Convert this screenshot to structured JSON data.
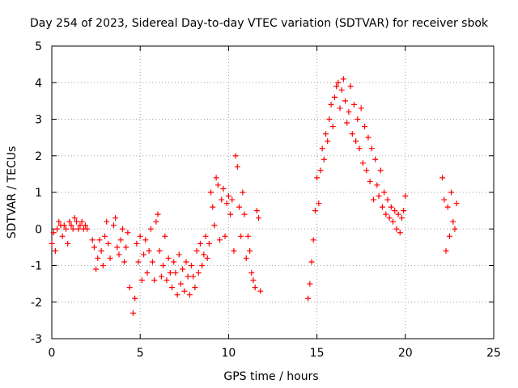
{
  "chart_data": {
    "type": "scatter",
    "title": "Day 254 of 2023, Sidereal Day-to-day VTEC variation (SDTVAR) for receiver sbok",
    "xlabel": "GPS time / hours",
    "ylabel": "SDTVAR / TECUs",
    "xlim": [
      0,
      25
    ],
    "ylim": [
      -3,
      5
    ],
    "x_ticks": [
      0,
      5,
      10,
      15,
      20,
      25
    ],
    "y_ticks": [
      -3,
      -2,
      -1,
      0,
      1,
      2,
      3,
      4,
      5
    ],
    "grid": true,
    "marker": "+",
    "color": "#ff0000",
    "series": [
      {
        "name": "SDTVAR",
        "x": [
          0.0,
          0.1,
          0.2,
          0.3,
          0.4,
          0.5,
          0.6,
          0.7,
          0.8,
          0.9,
          1.0,
          1.1,
          1.2,
          1.3,
          1.4,
          1.5,
          1.6,
          1.7,
          1.8,
          1.9,
          2.0,
          2.3,
          2.4,
          2.5,
          2.6,
          2.7,
          2.8,
          2.9,
          3.0,
          3.1,
          3.2,
          3.3,
          3.5,
          3.6,
          3.7,
          3.8,
          3.9,
          4.0,
          4.1,
          4.2,
          4.3,
          4.4,
          4.6,
          4.7,
          4.8,
          4.9,
          5.0,
          5.1,
          5.2,
          5.3,
          5.4,
          5.5,
          5.6,
          5.7,
          5.8,
          5.9,
          6.0,
          6.1,
          6.2,
          6.3,
          6.4,
          6.5,
          6.6,
          6.7,
          6.8,
          6.9,
          7.0,
          7.1,
          7.2,
          7.3,
          7.4,
          7.5,
          7.6,
          7.7,
          7.8,
          7.9,
          8.0,
          8.1,
          8.2,
          8.3,
          8.4,
          8.5,
          8.6,
          8.7,
          8.8,
          8.9,
          9.0,
          9.1,
          9.2,
          9.3,
          9.4,
          9.5,
          9.6,
          9.7,
          9.8,
          9.9,
          10.0,
          10.1,
          10.2,
          10.3,
          10.4,
          10.5,
          10.6,
          10.7,
          10.8,
          10.9,
          11.0,
          11.1,
          11.2,
          11.3,
          11.4,
          11.5,
          11.6,
          11.7,
          11.8,
          14.5,
          14.6,
          14.7,
          14.8,
          14.9,
          15.0,
          15.1,
          15.2,
          15.3,
          15.4,
          15.5,
          15.6,
          15.7,
          15.8,
          15.9,
          16.0,
          16.1,
          16.2,
          16.3,
          16.4,
          16.5,
          16.6,
          16.7,
          16.8,
          16.9,
          17.0,
          17.1,
          17.2,
          17.3,
          17.4,
          17.5,
          17.6,
          17.7,
          17.8,
          17.9,
          18.0,
          18.1,
          18.2,
          18.3,
          18.4,
          18.5,
          18.6,
          18.7,
          18.8,
          18.9,
          19.0,
          19.1,
          19.2,
          19.3,
          19.4,
          19.5,
          19.6,
          19.7,
          19.8,
          19.9,
          20.0,
          22.1,
          22.2,
          22.3,
          22.4,
          22.5,
          22.6,
          22.7,
          22.8,
          22.9
        ],
        "y": [
          -0.4,
          -0.1,
          -0.6,
          0.0,
          0.2,
          0.1,
          -0.2,
          0.1,
          0.0,
          -0.4,
          0.2,
          0.1,
          0.0,
          0.3,
          0.2,
          0.0,
          0.1,
          0.2,
          0.0,
          0.1,
          0.0,
          -0.3,
          -0.5,
          -1.1,
          -0.8,
          -0.3,
          -0.6,
          -1.0,
          -0.2,
          0.2,
          -0.4,
          -0.8,
          0.1,
          0.3,
          -0.5,
          -0.7,
          -0.3,
          0.0,
          -0.9,
          -0.5,
          -0.1,
          -1.6,
          -2.3,
          -1.9,
          -0.4,
          -0.9,
          -0.2,
          -1.4,
          -0.7,
          -0.3,
          -1.2,
          -0.6,
          0.0,
          -0.9,
          -1.4,
          0.2,
          0.4,
          -0.6,
          -1.3,
          -1.0,
          -0.2,
          -1.4,
          -0.8,
          -1.2,
          -1.6,
          -0.9,
          -1.2,
          -1.8,
          -0.7,
          -1.5,
          -1.1,
          -1.7,
          -0.9,
          -1.3,
          -1.8,
          -1.0,
          -1.3,
          -1.6,
          -0.6,
          -1.2,
          -0.4,
          -1.0,
          -0.7,
          -0.2,
          -0.8,
          -0.4,
          1.0,
          0.6,
          0.1,
          1.4,
          1.2,
          -0.3,
          0.8,
          1.1,
          -0.2,
          0.7,
          0.9,
          0.4,
          0.8,
          -0.6,
          2.0,
          1.7,
          0.6,
          -0.2,
          1.0,
          0.4,
          -0.8,
          -0.2,
          -0.6,
          -1.2,
          -1.4,
          -1.6,
          0.5,
          0.3,
          -1.7,
          -1.9,
          -1.5,
          -0.9,
          -0.3,
          0.5,
          1.4,
          0.7,
          1.6,
          2.2,
          1.9,
          2.6,
          2.4,
          3.0,
          3.4,
          2.8,
          3.6,
          3.9,
          4.0,
          3.3,
          3.8,
          4.1,
          3.5,
          2.9,
          3.2,
          3.9,
          2.6,
          3.4,
          2.4,
          3.0,
          2.2,
          3.3,
          1.8,
          2.8,
          1.6,
          2.5,
          1.3,
          2.2,
          0.8,
          1.9,
          1.2,
          0.9,
          1.6,
          0.6,
          1.0,
          0.4,
          0.8,
          0.3,
          0.6,
          0.2,
          0.5,
          0.0,
          0.4,
          -0.1,
          0.3,
          0.5,
          0.9,
          1.4,
          0.8,
          -0.6,
          0.6,
          -0.2,
          1.0,
          0.2,
          0.0,
          0.7
        ]
      }
    ]
  }
}
